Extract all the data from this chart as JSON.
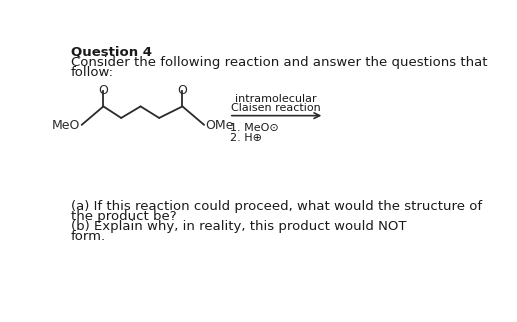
{
  "title": "Question 4",
  "line1": "Consider the following reaction and answer the questions that",
  "line2": "follow:",
  "reaction_label_top": "intramolecular",
  "reaction_label_mid": "Claisen reaction",
  "step1": "1. MeO⊙",
  "step2": "2. H⊕",
  "question_a": "(a) If this reaction could proceed, what would the structure of",
  "question_a2": "the product be?",
  "question_b": "(b) Explain why, in reality, this product would NOT",
  "question_b2": "form.",
  "meo_label": "MeO",
  "ome_label": "OMe",
  "bg_color": "#ffffff",
  "text_color": "#1a1a1a",
  "font_size_title": 9.5,
  "font_size_body": 9.5,
  "mol_lw": 1.3,
  "mol_color": "#2a2a2a"
}
